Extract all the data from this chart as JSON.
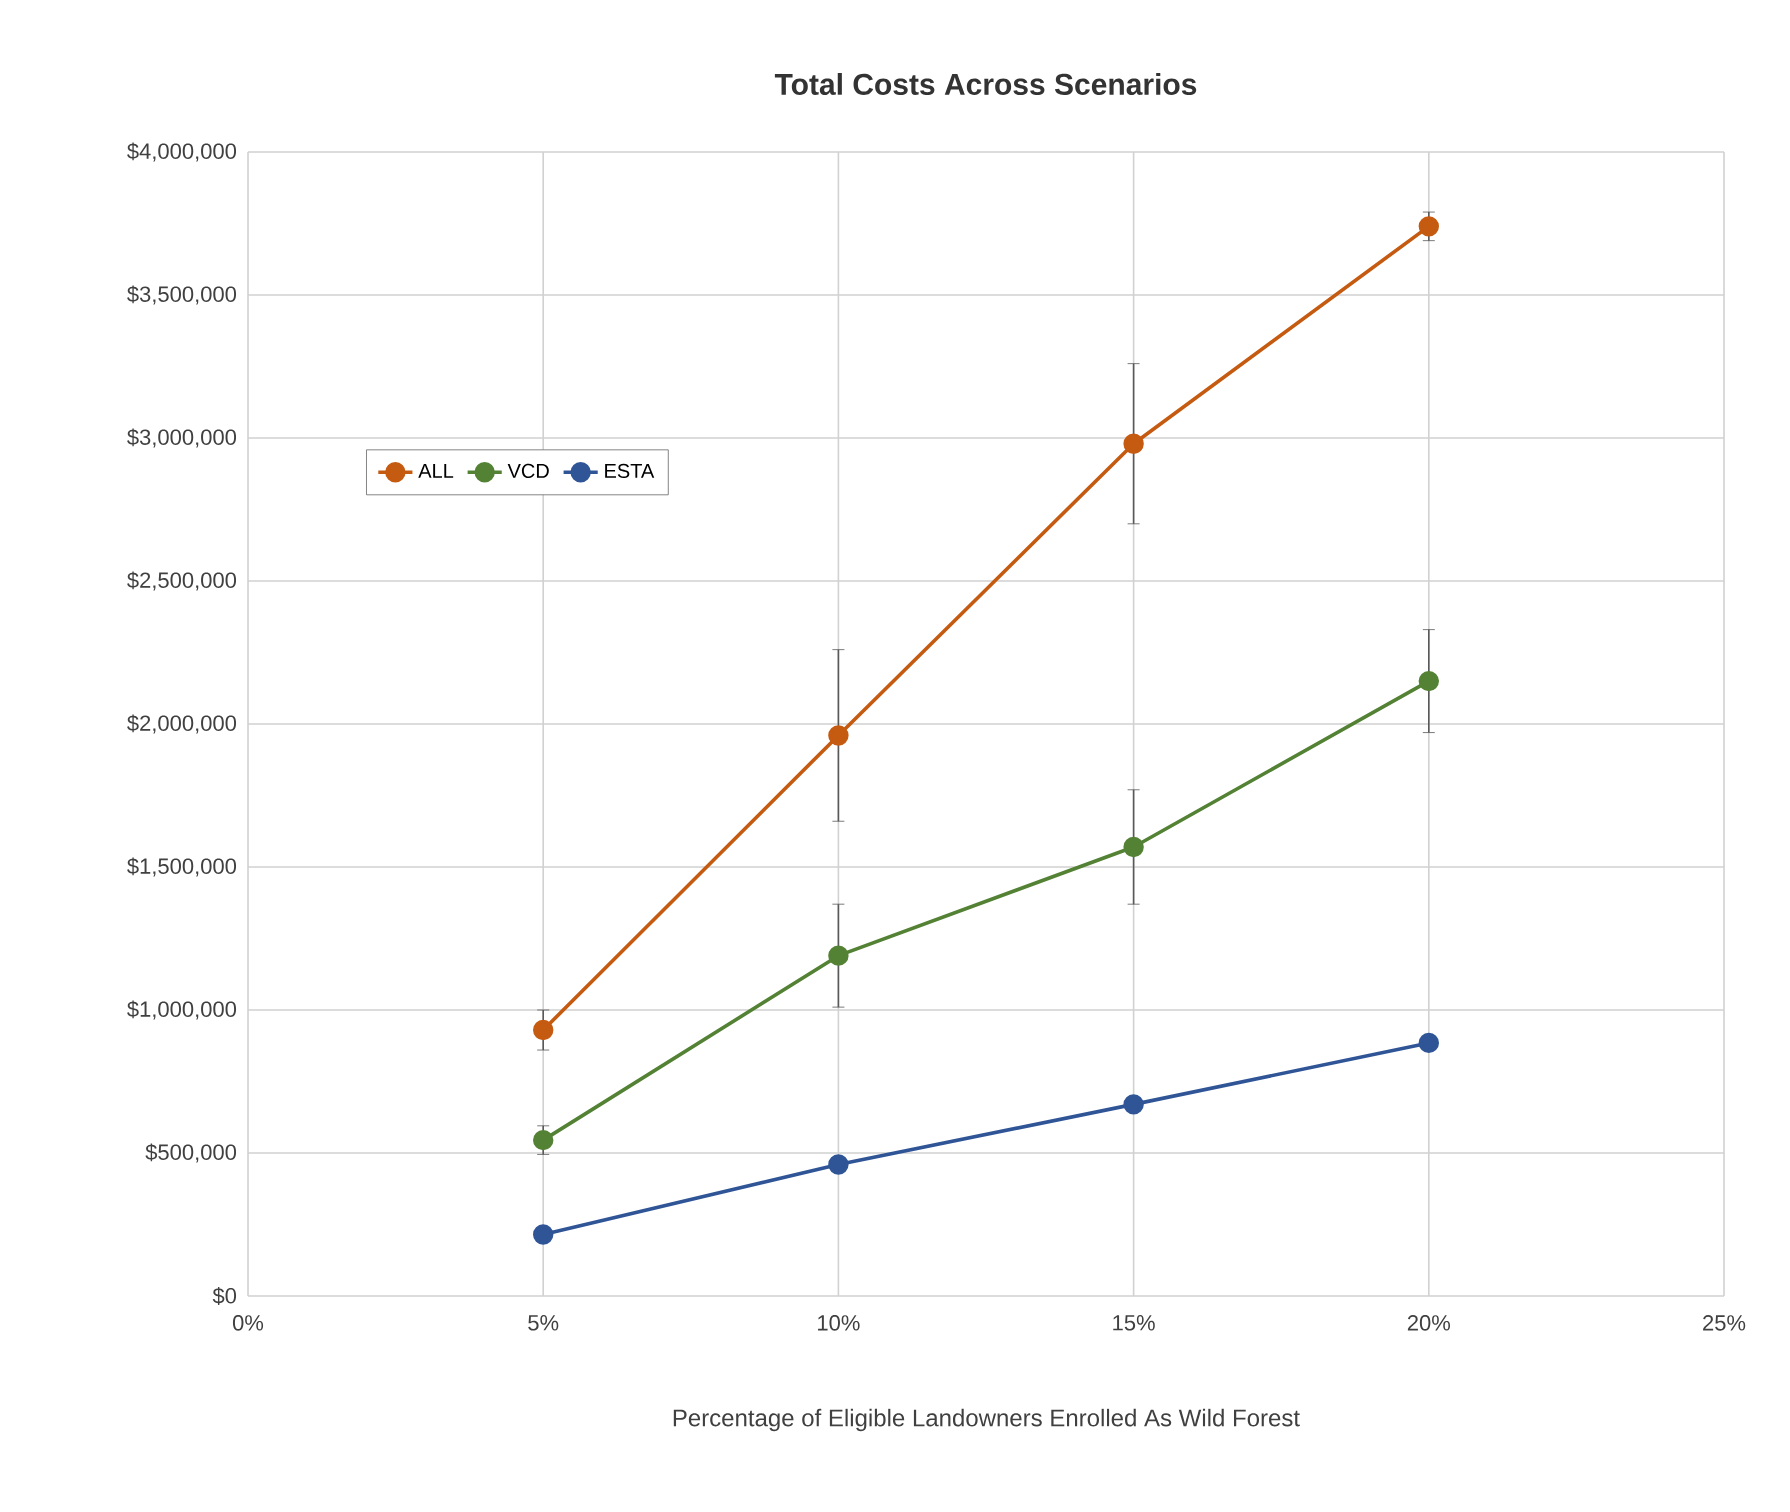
{
  "chart_data": {
    "type": "line",
    "title": "Total Costs Across Scenarios",
    "xlabel": "Percentage of Eligible Landowners Enrolled As Wild Forest",
    "x": [
      5,
      10,
      15,
      20
    ],
    "series": [
      {
        "name": "ALL",
        "color": "#c55a11",
        "values": [
          930000,
          1960000,
          2980000,
          3740000
        ],
        "errors": [
          70000,
          300000,
          280000,
          50000
        ]
      },
      {
        "name": "VCD",
        "color": "#548235",
        "values": [
          545000,
          1190000,
          1570000,
          2150000
        ],
        "errors": [
          50000,
          180000,
          200000,
          180000
        ]
      },
      {
        "name": "ESTA",
        "color": "#2f5597",
        "values": [
          215000,
          460000,
          670000,
          885000
        ]
      }
    ],
    "xlim": [
      0,
      25
    ],
    "xticks": [
      {
        "value": 0,
        "label": "0%"
      },
      {
        "value": 5,
        "label": "5%"
      },
      {
        "value": 10,
        "label": "10%"
      },
      {
        "value": 15,
        "label": "15%"
      },
      {
        "value": 20,
        "label": "20%"
      },
      {
        "value": 25,
        "label": "25%"
      }
    ],
    "ylim": [
      0,
      4000000
    ],
    "yticks": [
      {
        "value": 0,
        "label": "$0"
      },
      {
        "value": 500000,
        "label": "$500,000"
      },
      {
        "value": 1000000,
        "label": "$1,000,000"
      },
      {
        "value": 1500000,
        "label": "$1,500,000"
      },
      {
        "value": 2000000,
        "label": "$2,000,000"
      },
      {
        "value": 2500000,
        "label": "$2,500,000"
      },
      {
        "value": 3000000,
        "label": "$3,000,000"
      },
      {
        "value": 3500000,
        "label": "$3,500,000"
      },
      {
        "value": 4000000,
        "label": "$4,000,000"
      }
    ],
    "grid": true,
    "legend": "top left",
    "marker": "circle",
    "line_style": "solid"
  }
}
